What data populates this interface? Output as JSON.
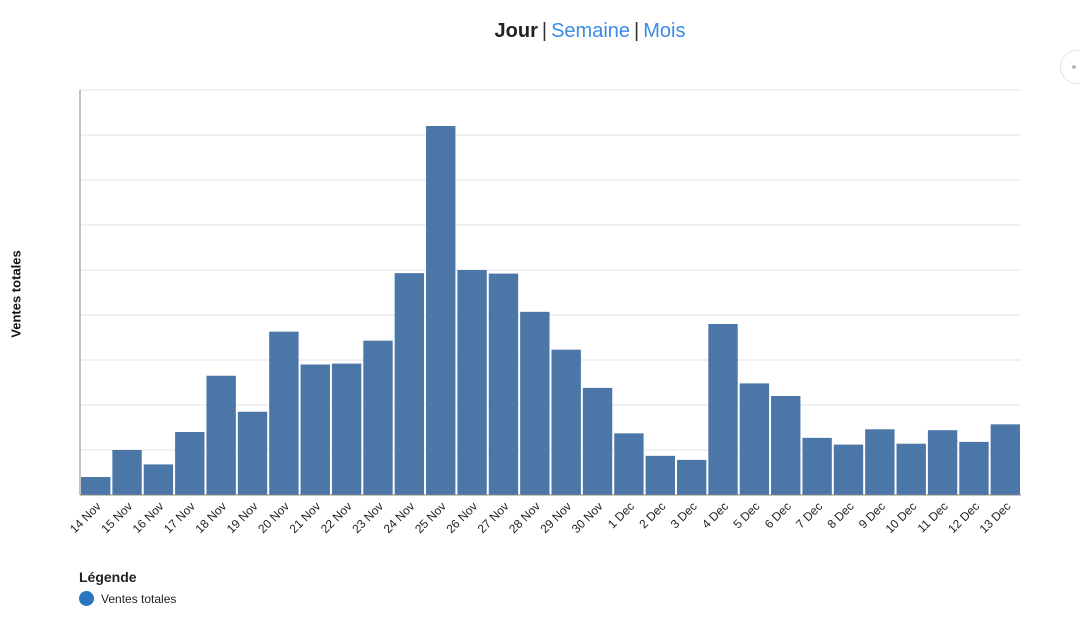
{
  "period_selector": {
    "options": [
      "Jour",
      "Semaine",
      "Mois"
    ],
    "active": "Jour",
    "separator": "|"
  },
  "chart_data": {
    "type": "bar",
    "ylabel": "Ventes totales",
    "xlabel": "",
    "title": "",
    "categories": [
      "14 Nov",
      "15 Nov",
      "16 Nov",
      "17 Nov",
      "18 Nov",
      "19 Nov",
      "20 Nov",
      "21 Nov",
      "22 Nov",
      "23 Nov",
      "24 Nov",
      "25 Nov",
      "26 Nov",
      "27 Nov",
      "28 Nov",
      "29 Nov",
      "30 Nov",
      "1 Dec",
      "2 Dec",
      "3 Dec",
      "4 Dec",
      "5 Dec",
      "6 Dec",
      "7 Dec",
      "8 Dec",
      "9 Dec",
      "10 Dec",
      "11 Dec",
      "12 Dec",
      "13 Dec"
    ],
    "series": [
      {
        "name": "Ventes totales",
        "values": [
          0.4,
          1.0,
          0.68,
          1.4,
          2.65,
          1.85,
          3.63,
          2.9,
          2.92,
          3.43,
          4.93,
          8.2,
          5.0,
          4.92,
          4.07,
          3.23,
          2.38,
          1.37,
          0.87,
          0.78,
          3.8,
          2.48,
          2.2,
          1.27,
          1.12,
          1.46,
          1.14,
          1.44,
          1.18,
          1.57
        ],
        "color": "#4a76a8"
      }
    ],
    "ylim": [
      0,
      9
    ],
    "gridlines": 9,
    "grid": true,
    "legend": {
      "title": "Légende",
      "placement": "bottom-left"
    },
    "colors": {
      "bar": "#4a76a8",
      "legend_marker": "#2a77bf",
      "grid": "#e3e3e3",
      "axis": "#888888"
    }
  }
}
